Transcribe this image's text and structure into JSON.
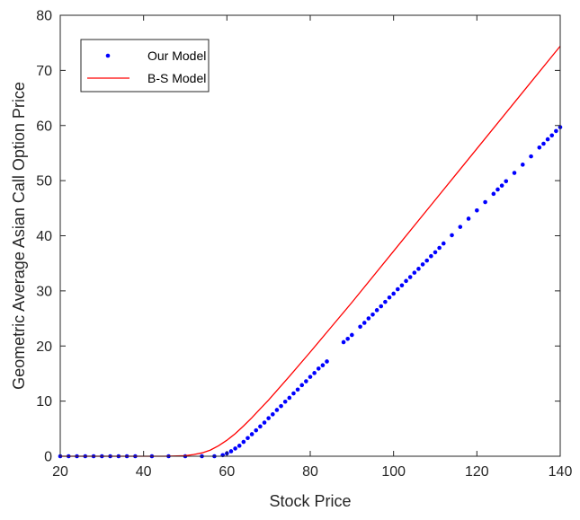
{
  "chart_data": {
    "type": "line",
    "title": "",
    "xlabel": "Stock Price",
    "ylabel": "Geometric Average Asian Call Option Price",
    "xlim": [
      20,
      140
    ],
    "ylim": [
      0,
      80
    ],
    "xticks": [
      20,
      40,
      60,
      80,
      100,
      120,
      140
    ],
    "yticks": [
      0,
      10,
      20,
      30,
      40,
      50,
      60,
      70,
      80
    ],
    "grid": false,
    "legend_position": "top-left",
    "series": [
      {
        "name": "Our Model",
        "style": "dots",
        "color": "#0000ff",
        "x": [
          20,
          22,
          24,
          26,
          28,
          30,
          32,
          34,
          36,
          38,
          42,
          46,
          50,
          54,
          57,
          59,
          60,
          61,
          62,
          63,
          64,
          65,
          66,
          67,
          68,
          69,
          70,
          71,
          72,
          73,
          74,
          75,
          76,
          77,
          78,
          79,
          80,
          81,
          82,
          83,
          84,
          88,
          89,
          90,
          92,
          93,
          94,
          95,
          96,
          97,
          98,
          99,
          100,
          101,
          102,
          103,
          104,
          105,
          106,
          107,
          108,
          109,
          110,
          111,
          112,
          114,
          116,
          118,
          120,
          122,
          124,
          125,
          126,
          127,
          129,
          131,
          133,
          135,
          136,
          137,
          138,
          139,
          140
        ],
        "y": [
          0,
          0,
          0,
          0,
          0,
          0,
          0,
          0,
          0,
          0,
          0,
          0,
          0,
          0,
          0,
          0.2,
          0.5,
          0.9,
          1.4,
          1.9,
          2.6,
          3.3,
          4.0,
          4.7,
          5.4,
          6.1,
          6.9,
          7.6,
          8.4,
          9.1,
          9.9,
          10.6,
          11.4,
          12.1,
          12.9,
          13.6,
          14.4,
          15.1,
          15.9,
          16.5,
          17.2,
          20.7,
          21.3,
          22.0,
          23.5,
          24.2,
          25.0,
          25.7,
          26.5,
          27.2,
          28.0,
          28.8,
          29.5,
          30.3,
          31.0,
          31.8,
          32.5,
          33.3,
          34.0,
          34.8,
          35.5,
          36.3,
          37.0,
          37.8,
          38.6,
          40.1,
          41.6,
          43.1,
          44.6,
          46.1,
          47.6,
          48.4,
          49.1,
          49.9,
          51.4,
          52.9,
          54.4,
          56.0,
          56.7,
          57.5,
          58.2,
          59.0,
          59.7
        ]
      },
      {
        "name": "B-S Model",
        "style": "line",
        "color": "#ff0000",
        "x": [
          20,
          30,
          40,
          45,
          50,
          52,
          54,
          56,
          58,
          60,
          62,
          64,
          66,
          68,
          70,
          75,
          80,
          85,
          90,
          100,
          110,
          120,
          130,
          140
        ],
        "y": [
          0,
          0,
          0,
          0,
          0.1,
          0.3,
          0.6,
          1.1,
          1.9,
          2.9,
          4.1,
          5.5,
          7.0,
          8.6,
          10.2,
          14.5,
          18.9,
          23.4,
          27.9,
          37.2,
          46.5,
          55.8,
          65.1,
          74.4
        ]
      }
    ]
  }
}
